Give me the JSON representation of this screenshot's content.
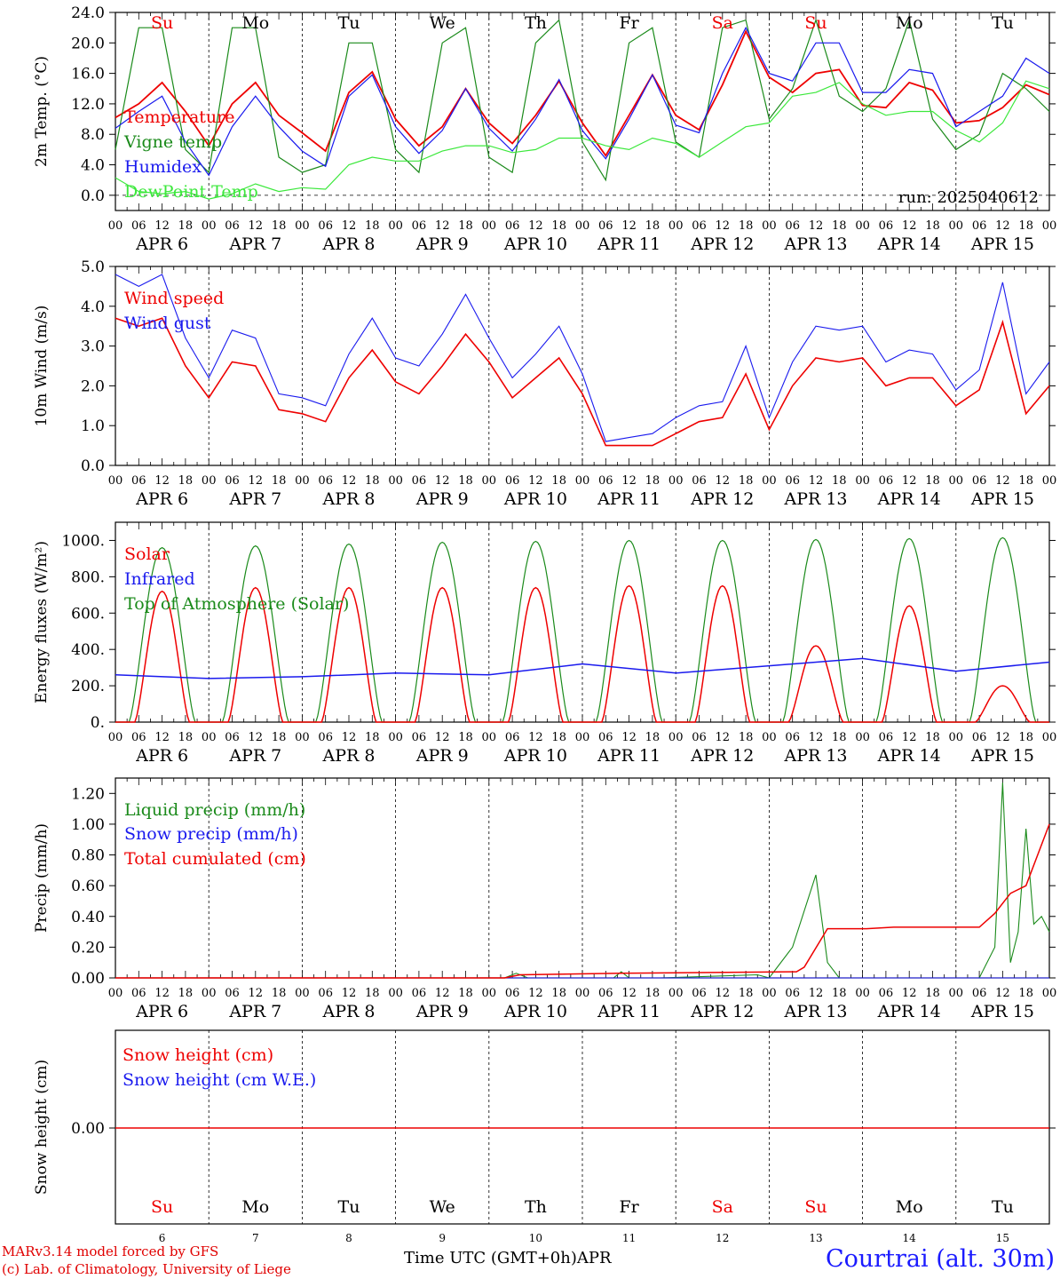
{
  "colors": {
    "red": "#ee0000",
    "green": "#1a8a1a",
    "blue": "#1a1aee",
    "lightgreen": "#3ce83c"
  },
  "footer": {
    "model": "MARv3.14 model forced by GFS",
    "lab": "(c) Lab. of Climatology, University of Liege",
    "xtitle": "Time UTC (GMT+0h)APR",
    "station": "Courtrai (alt. 30m)"
  },
  "chart_data": [
    {
      "type": "line",
      "ylabel": "2m Temp. (°C)",
      "ylim": [
        0,
        24
      ],
      "yticks": [
        "0.0",
        "4.0",
        "8.0",
        "12.0",
        "16.0",
        "20.0",
        "24.0"
      ],
      "annotation": "run: 2025040612",
      "weekday_labels": [
        "Su",
        "Mo",
        "Tu",
        "We",
        "Th",
        "Fr",
        "Sa",
        "Su",
        "Mo",
        "Tu"
      ],
      "weekday_colors": [
        "red",
        "black",
        "black",
        "black",
        "black",
        "black",
        "red",
        "red",
        "black",
        "black"
      ],
      "date_labels": [
        "APR 6",
        "APR 7",
        "APR 8",
        "APR 9",
        "APR 10",
        "APR 11",
        "APR 12",
        "APR 13",
        "APR 14",
        "APR 15"
      ],
      "hour_ticks": [
        "00",
        "06",
        "12",
        "18"
      ],
      "series": [
        {
          "name": "Temperature",
          "color": "red",
          "x": [
            0,
            6,
            12,
            18,
            24,
            30,
            36,
            42,
            48,
            54,
            60,
            66,
            72,
            78,
            84,
            90,
            96,
            102,
            108,
            114,
            120,
            126,
            132,
            138,
            144,
            150,
            156,
            162,
            168,
            174,
            180,
            186,
            192,
            198,
            204,
            210,
            216,
            222,
            228,
            234,
            240
          ],
          "values": [
            10.2,
            12,
            14.8,
            11,
            6.5,
            12,
            14.8,
            10.5,
            8.2,
            5.8,
            13.5,
            16.2,
            10,
            6.5,
            9,
            14,
            9.5,
            6.8,
            10.5,
            15,
            9.5,
            5.2,
            10.5,
            15.8,
            10.5,
            8.6,
            14.5,
            21.5,
            15.5,
            13.5,
            16,
            16.5,
            11.8,
            11.5,
            14.8,
            13.8,
            9.5,
            9.8,
            11.5,
            14.5,
            13.2
          ]
        },
        {
          "name": "Vigne temp",
          "color": "green",
          "x": [
            0,
            6,
            12,
            18,
            24,
            30,
            36,
            42,
            48,
            54,
            60,
            66,
            72,
            78,
            84,
            90,
            96,
            102,
            108,
            114,
            120,
            126,
            132,
            138,
            144,
            150,
            156,
            162,
            168,
            174,
            180,
            186,
            192,
            198,
            204,
            210,
            216,
            222,
            228,
            234,
            240
          ],
          "values": [
            6,
            22,
            22,
            6,
            3,
            22,
            22,
            5,
            3,
            4,
            20,
            20,
            6,
            3,
            20,
            22,
            5,
            3,
            20,
            23,
            7,
            2,
            20,
            22,
            7,
            5,
            22,
            23,
            10,
            14,
            23,
            13,
            11,
            14,
            23,
            10,
            6,
            8,
            16,
            14,
            11
          ]
        },
        {
          "name": "Humidex",
          "color": "blue",
          "x": [
            0,
            6,
            12,
            18,
            24,
            30,
            36,
            42,
            48,
            54,
            60,
            66,
            72,
            78,
            84,
            90,
            96,
            102,
            108,
            114,
            120,
            126,
            132,
            138,
            144,
            150,
            156,
            162,
            168,
            174,
            180,
            186,
            192,
            198,
            204,
            210,
            216,
            222,
            228,
            234,
            240
          ],
          "values": [
            8.8,
            11,
            13,
            7,
            2.6,
            9,
            13,
            9,
            5.8,
            3.8,
            13,
            15.8,
            9,
            5.5,
            8.5,
            14,
            8.8,
            5.8,
            10,
            15.2,
            8.5,
            4.8,
            10,
            15.8,
            9.2,
            8.2,
            16,
            22,
            16,
            15,
            20,
            20,
            13.5,
            13.5,
            16.5,
            16,
            9,
            11,
            13,
            18,
            16
          ]
        },
        {
          "name": "DewPoint Temp",
          "color": "lightgreen",
          "x": [
            0,
            6,
            12,
            18,
            24,
            30,
            36,
            42,
            48,
            54,
            60,
            66,
            72,
            78,
            84,
            90,
            96,
            102,
            108,
            114,
            120,
            126,
            132,
            138,
            144,
            150,
            156,
            162,
            168,
            174,
            180,
            186,
            192,
            198,
            204,
            210,
            216,
            222,
            228,
            234,
            240
          ],
          "values": [
            2.3,
            0.5,
            0.2,
            0.5,
            -0.5,
            0.2,
            1.5,
            0.5,
            1,
            0.8,
            4,
            5,
            4.5,
            4.5,
            5.8,
            6.5,
            6.5,
            5.6,
            6,
            7.5,
            7.5,
            6.5,
            6,
            7.5,
            6.8,
            5,
            7,
            9,
            9.5,
            13,
            13.5,
            14.8,
            12,
            10.5,
            11,
            11,
            8.5,
            7,
            9.5,
            15,
            14
          ]
        }
      ]
    },
    {
      "type": "line",
      "ylabel": "10m Wind (m/s)",
      "ylim": [
        0,
        5
      ],
      "yticks": [
        "0.0",
        "1.0",
        "2.0",
        "3.0",
        "4.0",
        "5.0"
      ],
      "date_labels": [
        "APR 6",
        "APR 7",
        "APR 8",
        "APR 9",
        "APR 10",
        "APR 11",
        "APR 12",
        "APR 13",
        "APR 14",
        "APR 15"
      ],
      "hour_ticks": [
        "00",
        "06",
        "12",
        "18"
      ],
      "series": [
        {
          "name": "Wind speed",
          "color": "red",
          "x": [
            0,
            6,
            12,
            18,
            24,
            30,
            36,
            42,
            48,
            54,
            60,
            66,
            72,
            78,
            84,
            90,
            96,
            102,
            108,
            114,
            120,
            126,
            132,
            138,
            144,
            150,
            156,
            162,
            168,
            174,
            180,
            186,
            192,
            198,
            204,
            210,
            216,
            222,
            228,
            234,
            240
          ],
          "values": [
            3.7,
            3.5,
            3.7,
            2.5,
            1.7,
            2.6,
            2.5,
            1.4,
            1.3,
            1.1,
            2.2,
            2.9,
            2.1,
            1.8,
            2.5,
            3.3,
            2.6,
            1.7,
            2.2,
            2.7,
            1.8,
            0.5,
            0.5,
            0.5,
            0.8,
            1.1,
            1.2,
            2.3,
            0.9,
            2,
            2.7,
            2.6,
            2.7,
            2,
            2.2,
            2.2,
            1.5,
            1.9,
            3.6,
            1.3,
            2
          ]
        },
        {
          "name": "Wind gust",
          "color": "blue",
          "x": [
            0,
            6,
            12,
            18,
            24,
            30,
            36,
            42,
            48,
            54,
            60,
            66,
            72,
            78,
            84,
            90,
            96,
            102,
            108,
            114,
            120,
            126,
            132,
            138,
            144,
            150,
            156,
            162,
            168,
            174,
            180,
            186,
            192,
            198,
            204,
            210,
            216,
            222,
            228,
            234,
            240
          ],
          "values": [
            4.8,
            4.5,
            4.8,
            3.2,
            2.2,
            3.4,
            3.2,
            1.8,
            1.7,
            1.5,
            2.8,
            3.7,
            2.7,
            2.5,
            3.3,
            4.3,
            3.2,
            2.2,
            2.8,
            3.5,
            2.3,
            0.6,
            0.7,
            0.8,
            1.2,
            1.5,
            1.6,
            3,
            1.2,
            2.6,
            3.5,
            3.4,
            3.5,
            2.6,
            2.9,
            2.8,
            1.9,
            2.4,
            4.6,
            1.8,
            2.6
          ]
        }
      ]
    },
    {
      "type": "line",
      "ylabel": "Energy fluxes (W/m²)",
      "ylim": [
        0,
        1100
      ],
      "yticks": [
        "0.",
        "200.",
        "400.",
        "600.",
        "800.",
        "1000."
      ],
      "date_labels": [
        "APR 6",
        "APR 7",
        "APR 8",
        "APR 9",
        "APR 10",
        "APR 11",
        "APR 12",
        "APR 13",
        "APR 14",
        "APR 15"
      ],
      "hour_ticks": [
        "00",
        "06",
        "12",
        "18"
      ],
      "series": [
        {
          "name": "Solar",
          "color": "red",
          "peaks": [
            720,
            740,
            740,
            740,
            740,
            750,
            750,
            420,
            640,
            200
          ]
        },
        {
          "name": "Infrared",
          "color": "blue",
          "x": [
            0,
            24,
            48,
            72,
            96,
            120,
            144,
            168,
            192,
            216,
            240
          ],
          "values": [
            260,
            240,
            250,
            270,
            260,
            320,
            270,
            310,
            350,
            280,
            330
          ]
        },
        {
          "name": "Top of Atmosphere (Solar)",
          "color": "green",
          "peaks": [
            960,
            970,
            980,
            990,
            995,
            1000,
            1000,
            1005,
            1010,
            1015
          ]
        }
      ]
    },
    {
      "type": "line",
      "ylabel": "Precip (mm/h)",
      "ylim": [
        0,
        1.3
      ],
      "yticks": [
        "0.00",
        "0.20",
        "0.40",
        "0.60",
        "0.80",
        "1.00",
        "1.20"
      ],
      "date_labels": [
        "APR 6",
        "APR 7",
        "APR 8",
        "APR 9",
        "APR 10",
        "APR 11",
        "APR 12",
        "APR 13",
        "APR 14",
        "APR 15"
      ],
      "hour_ticks": [
        "00",
        "06",
        "12",
        "18"
      ],
      "series": [
        {
          "name": "Liquid precip (mm/h)",
          "color": "green",
          "x": [
            0,
            100,
            103,
            106,
            128,
            130,
            132,
            140,
            165,
            168,
            174,
            180,
            183,
            186,
            190,
            210,
            216,
            222,
            226,
            228,
            230,
            232,
            234,
            236,
            238,
            240
          ],
          "values": [
            0,
            0,
            0.03,
            0,
            0,
            0.04,
            0,
            0,
            0.02,
            0,
            0.2,
            0.67,
            0.1,
            0,
            0,
            0,
            0,
            0,
            0.2,
            1.27,
            0.1,
            0.3,
            0.97,
            0.35,
            0.4,
            0.3
          ]
        },
        {
          "name": "Snow precip (mm/h)",
          "color": "blue",
          "x": [
            0,
            240
          ],
          "values": [
            0,
            0
          ]
        },
        {
          "name": "Total cumulated (cm)",
          "color": "red",
          "x": [
            0,
            100,
            104,
            130,
            175,
            177,
            183,
            193,
            200,
            222,
            226,
            230,
            234,
            240
          ],
          "values": [
            0,
            0,
            0.02,
            0.03,
            0.04,
            0.07,
            0.32,
            0.32,
            0.33,
            0.33,
            0.42,
            0.55,
            0.6,
            1.0
          ]
        }
      ]
    },
    {
      "type": "line",
      "ylabel": "Snow height (cm)",
      "yticks": [
        "0.00"
      ],
      "weekday_labels": [
        "Su",
        "Mo",
        "Tu",
        "We",
        "Th",
        "Fr",
        "Sa",
        "Su",
        "Mo",
        "Tu"
      ],
      "weekday_colors": [
        "red",
        "black",
        "black",
        "black",
        "black",
        "black",
        "red",
        "red",
        "black",
        "black"
      ],
      "day_numbers": [
        "6",
        "7",
        "8",
        "9",
        "10",
        "11",
        "12",
        "13",
        "14",
        "15"
      ],
      "series": [
        {
          "name": "Snow height (cm)",
          "color": "red",
          "x": [
            0,
            240
          ],
          "values": [
            0,
            0
          ]
        },
        {
          "name": "Snow height (cm W.E.)",
          "color": "blue"
        }
      ]
    }
  ]
}
